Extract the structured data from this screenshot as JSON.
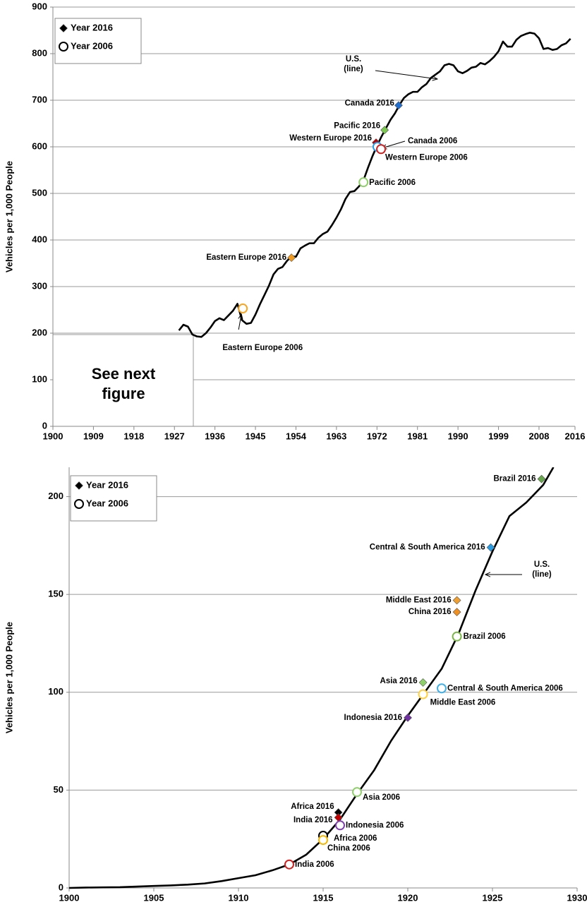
{
  "chart_data": [
    {
      "type": "line",
      "y_label": "Vehicles per 1,000 People",
      "xlim": [
        1900,
        2016
      ],
      "ylim": [
        0,
        900
      ],
      "xticks": [
        1900,
        1909,
        1918,
        1927,
        1936,
        1945,
        1954,
        1963,
        1972,
        1981,
        1990,
        1999,
        2008,
        2016
      ],
      "yticks": [
        0,
        100,
        200,
        300,
        400,
        500,
        600,
        700,
        800,
        900
      ],
      "grid": true,
      "legend_corner": "top-left",
      "legend": [
        {
          "label": "Year 2016",
          "marker": "diamond"
        },
        {
          "label": "Year 2006",
          "marker": "circle"
        }
      ],
      "line_annotation": [
        "U.S.",
        "(line)"
      ],
      "box_annotation": [
        "See next",
        "figure"
      ],
      "series": [
        {
          "color": "#000000",
          "x": [
            1928,
            1929,
            1930,
            1931,
            1932,
            1933,
            1934,
            1935,
            1936,
            1937,
            1938,
            1939,
            1940,
            1941,
            1942,
            1943,
            1944,
            1945,
            1946,
            1947,
            1948,
            1949,
            1950,
            1951,
            1952,
            1953,
            1954,
            1955,
            1956,
            1957,
            1958,
            1959,
            1960,
            1961,
            1962,
            1963,
            1964,
            1965,
            1966,
            1967,
            1968,
            1969,
            1970,
            1971,
            1972,
            1973,
            1974,
            1975,
            1976,
            1977,
            1978,
            1979,
            1980,
            1981,
            1982,
            1983,
            1984,
            1985,
            1986,
            1987,
            1988,
            1989,
            1990,
            1991,
            1992,
            1993,
            1994,
            1995,
            1996,
            1997,
            1998,
            1999,
            2000,
            2001,
            2002,
            2003,
            2004,
            2005,
            2006,
            2007,
            2008,
            2009,
            2010,
            2011,
            2012,
            2013,
            2014,
            2015
          ],
          "values": [
            206,
            218,
            214,
            197,
            193,
            192,
            200,
            212,
            226,
            232,
            228,
            238,
            248,
            263,
            228,
            220,
            222,
            240,
            262,
            282,
            302,
            326,
            338,
            342,
            355,
            365,
            364,
            382,
            388,
            393,
            393,
            405,
            413,
            418,
            432,
            448,
            466,
            488,
            503,
            505,
            515,
            528,
            555,
            580,
            602,
            622,
            640,
            658,
            672,
            690,
            705,
            713,
            718,
            718,
            728,
            735,
            748,
            755,
            762,
            775,
            778,
            775,
            762,
            758,
            763,
            770,
            772,
            780,
            777,
            784,
            793,
            805,
            826,
            815,
            815,
            830,
            838,
            842,
            845,
            843,
            833,
            810,
            812,
            808,
            810,
            818,
            822,
            832
          ]
        }
      ],
      "points": [
        {
          "label": "Canada 2016",
          "x": 1976.8,
          "y": 689,
          "marker": "diamond",
          "color": "#1f6fd0"
        },
        {
          "label": "Pacific 2016",
          "x": 1973.7,
          "y": 636,
          "marker": "diamond",
          "color": "#7cc850"
        },
        {
          "label": "Western Europe 2016",
          "x": 1971.8,
          "y": 609,
          "marker": "diamond",
          "color": "#c00000"
        },
        {
          "label": "Canada 2006",
          "x": 1972.1,
          "y": 600,
          "marker": "circle",
          "color": "#2a9be0"
        },
        {
          "label": "Western Europe 2006",
          "x": 1972.9,
          "y": 595,
          "marker": "circle",
          "color": "#d02020"
        },
        {
          "label": "Pacific 2006",
          "x": 1969,
          "y": 524,
          "marker": "circle",
          "color": "#8fd06a"
        },
        {
          "label": "Eastern Europe 2016",
          "x": 1953,
          "y": 362,
          "marker": "diamond",
          "color": "#f09a20"
        },
        {
          "label": "Eastern Europe 2006",
          "x": 1942.2,
          "y": 253,
          "marker": "circle",
          "color": "#f5a623"
        }
      ]
    },
    {
      "type": "line",
      "y_label": "Vehicles per 1,000 People",
      "xlim": [
        1900,
        1930
      ],
      "ylim": [
        0,
        215
      ],
      "xticks": [
        1900,
        1905,
        1910,
        1915,
        1920,
        1925,
        1930
      ],
      "yticks": [
        0,
        50,
        100,
        150,
        200
      ],
      "grid": true,
      "legend_corner": "top-left",
      "legend": [
        {
          "label": "Year 2016",
          "marker": "diamond"
        },
        {
          "label": "Year 2006",
          "marker": "circle"
        }
      ],
      "line_annotation": [
        "U.S.",
        "(line)"
      ],
      "series": [
        {
          "color": "#000000",
          "x": [
            1900,
            1901,
            1902,
            1903,
            1904,
            1905,
            1906,
            1907,
            1908,
            1909,
            1910,
            1911,
            1912,
            1913,
            1914,
            1915,
            1916,
            1917,
            1918,
            1919,
            1920,
            1921,
            1922,
            1923,
            1924,
            1925,
            1926,
            1927,
            1928,
            1928.6
          ],
          "values": [
            0,
            0.2,
            0.3,
            0.4,
            0.7,
            1,
            1.3,
            1.7,
            2.3,
            3.5,
            5,
            6.5,
            9,
            12,
            17,
            25,
            35,
            48,
            60,
            75,
            88,
            100,
            112,
            130,
            152,
            172,
            190,
            197,
            206,
            215
          ]
        }
      ],
      "points": [
        {
          "label": "Brazil 2016",
          "x": 1927.9,
          "y": 209,
          "marker": "diamond",
          "color": "#6aa84f"
        },
        {
          "label": "Central & South America 2016",
          "x": 1924.9,
          "y": 174,
          "marker": "diamond",
          "color": "#2a9be0"
        },
        {
          "label": "Middle East 2016",
          "x": 1922.9,
          "y": 147,
          "marker": "diamond",
          "color": "#f0a030"
        },
        {
          "label": "China 2016",
          "x": 1922.9,
          "y": 141,
          "marker": "diamond",
          "color": "#f09020"
        },
        {
          "label": "Brazil 2006",
          "x": 1922.9,
          "y": 128.5,
          "marker": "circle",
          "color": "#7ab648"
        },
        {
          "label": "Asia 2016",
          "x": 1920.9,
          "y": 105,
          "marker": "diamond",
          "color": "#8fd06a"
        },
        {
          "label": "Central & South America 2006",
          "x": 1922,
          "y": 102,
          "marker": "circle",
          "color": "#40b0e8"
        },
        {
          "label": "Middle East 2006",
          "x": 1920.9,
          "y": 99,
          "marker": "circle",
          "color": "#ffd040"
        },
        {
          "label": "Indonesia 2016",
          "x": 1920,
          "y": 87,
          "marker": "diamond",
          "color": "#7030a0"
        },
        {
          "label": "Asia 2006",
          "x": 1917,
          "y": 49,
          "marker": "circle",
          "color": "#8fd06a"
        },
        {
          "label": "Africa 2016",
          "x": 1915.9,
          "y": 38.6,
          "marker": "diamond",
          "color": "#000000"
        },
        {
          "label": "India 2016",
          "x": 1915.9,
          "y": 36,
          "marker": "diamond",
          "color": "#c00000"
        },
        {
          "label": "Indonesia 2006",
          "x": 1916,
          "y": 32,
          "marker": "circle",
          "color": "#8040b0"
        },
        {
          "label": "Africa 2006",
          "x": 1915,
          "y": 26.7,
          "marker": "circle",
          "color": "#000000"
        },
        {
          "label": "China 2006",
          "x": 1915,
          "y": 24.5,
          "marker": "circle",
          "color": "#f5b800"
        },
        {
          "label": "India 2006",
          "x": 1913,
          "y": 12,
          "marker": "circle",
          "color": "#d02020"
        }
      ]
    }
  ]
}
